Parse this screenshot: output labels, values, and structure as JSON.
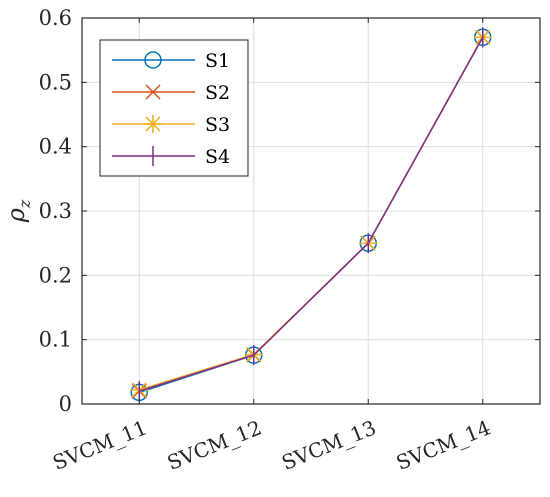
{
  "chart_data": {
    "type": "line",
    "categories": [
      "SVCM_11",
      "SVCM_12",
      "SVCM_13",
      "SVCM_14"
    ],
    "ylabel": "ρz",
    "ylabel_main": "ρ",
    "ylabel_sub": "z",
    "ylim": [
      0,
      0.6
    ],
    "yticks": [
      0,
      0.1,
      0.2,
      0.3,
      0.4,
      0.5,
      0.6
    ],
    "ytick_labels": [
      "0",
      "0.1",
      "0.2",
      "0.3",
      "0.4",
      "0.5",
      "0.6"
    ],
    "grid": true,
    "legend_position": "top-left",
    "series": [
      {
        "name": "S1",
        "values": [
          0.018,
          0.076,
          0.25,
          0.57
        ],
        "color": "#0072BD",
        "marker": "circle"
      },
      {
        "name": "S2",
        "values": [
          0.02,
          0.076,
          0.25,
          0.57
        ],
        "color": "#D95319",
        "marker": "x"
      },
      {
        "name": "S3",
        "values": [
          0.022,
          0.077,
          0.25,
          0.57
        ],
        "color": "#EDB120",
        "marker": "star"
      },
      {
        "name": "S4",
        "values": [
          0.02,
          0.076,
          0.25,
          0.57
        ],
        "color": "#7E2F8E",
        "marker": "plus"
      }
    ]
  }
}
